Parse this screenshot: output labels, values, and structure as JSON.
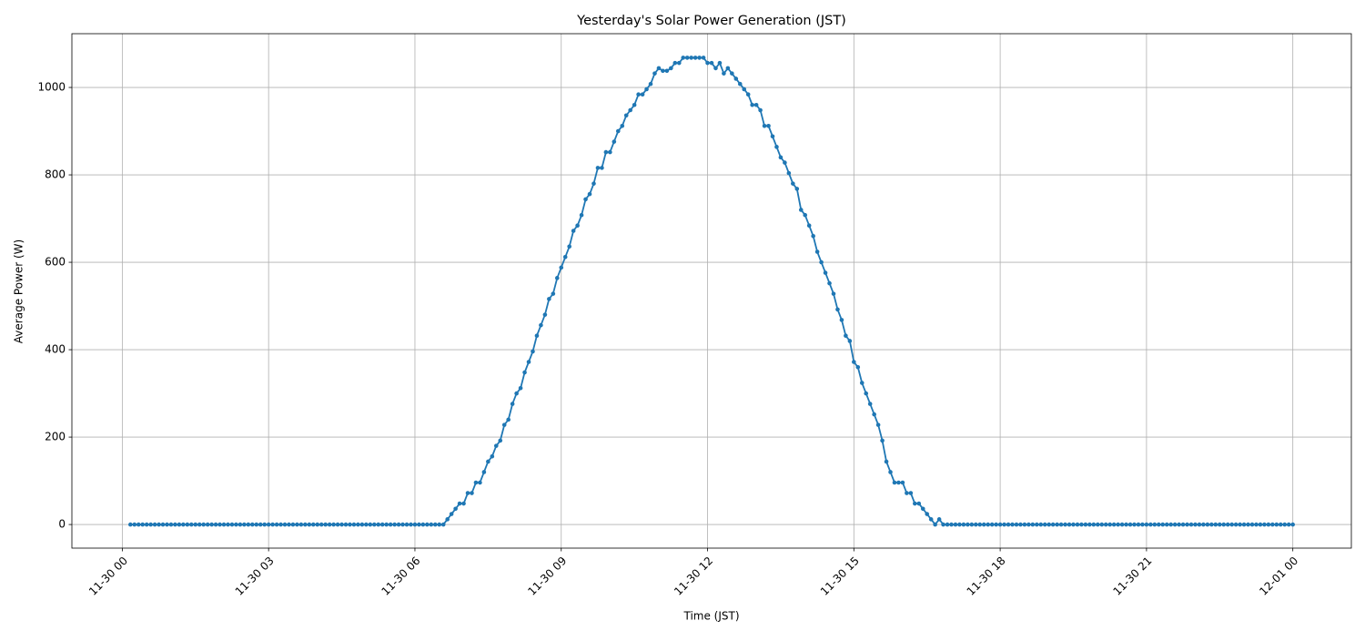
{
  "chart_data": {
    "type": "line",
    "title": "Yesterday's Solar Power Generation (JST)",
    "xlabel": "Time (JST)",
    "ylabel": "Average Power (W)",
    "color": "#1f77b4",
    "grid": true,
    "xlim": [
      -62,
      1512
    ],
    "ylim": [
      -54,
      1123
    ],
    "xticks": [
      {
        "value": 0,
        "label": "11-30 00"
      },
      {
        "value": 180,
        "label": "11-30 03"
      },
      {
        "value": 360,
        "label": "11-30 06"
      },
      {
        "value": 540,
        "label": "11-30 09"
      },
      {
        "value": 720,
        "label": "11-30 12"
      },
      {
        "value": 900,
        "label": "11-30 15"
      },
      {
        "value": 1080,
        "label": "11-30 18"
      },
      {
        "value": 1260,
        "label": "11-30 21"
      },
      {
        "value": 1440,
        "label": "12-01 00"
      }
    ],
    "yticks": [
      0,
      200,
      400,
      600,
      800,
      1000
    ],
    "x": [
      10,
      15,
      20,
      25,
      30,
      35,
      40,
      45,
      50,
      55,
      60,
      65,
      70,
      75,
      80,
      85,
      90,
      95,
      100,
      105,
      110,
      115,
      120,
      125,
      130,
      135,
      140,
      145,
      150,
      155,
      160,
      165,
      170,
      175,
      180,
      185,
      190,
      195,
      200,
      205,
      210,
      215,
      220,
      225,
      230,
      235,
      240,
      245,
      250,
      255,
      260,
      265,
      270,
      275,
      280,
      285,
      290,
      295,
      300,
      305,
      310,
      315,
      320,
      325,
      330,
      335,
      340,
      345,
      350,
      355,
      360,
      365,
      370,
      375,
      380,
      385,
      390,
      395,
      400,
      405,
      410,
      415,
      420,
      425,
      430,
      435,
      440,
      445,
      450,
      455,
      460,
      465,
      470,
      475,
      480,
      485,
      490,
      495,
      500,
      505,
      510,
      515,
      520,
      525,
      530,
      535,
      540,
      545,
      550,
      555,
      560,
      565,
      570,
      575,
      580,
      585,
      590,
      595,
      600,
      605,
      610,
      615,
      620,
      625,
      630,
      635,
      640,
      645,
      650,
      655,
      660,
      665,
      670,
      675,
      680,
      685,
      690,
      695,
      700,
      705,
      710,
      715,
      720,
      725,
      730,
      735,
      740,
      745,
      750,
      755,
      760,
      765,
      770,
      775,
      780,
      785,
      790,
      795,
      800,
      805,
      810,
      815,
      820,
      825,
      830,
      835,
      840,
      845,
      850,
      855,
      860,
      865,
      870,
      875,
      880,
      885,
      890,
      895,
      900,
      905,
      910,
      915,
      920,
      925,
      930,
      935,
      940,
      945,
      950,
      955,
      960,
      965,
      970,
      975,
      980,
      985,
      990,
      995,
      1000,
      1005,
      1010,
      1015,
      1020,
      1025,
      1030,
      1035,
      1040,
      1045,
      1050,
      1055,
      1060,
      1065,
      1070,
      1075,
      1080,
      1085,
      1090,
      1095,
      1100,
      1105,
      1110,
      1115,
      1120,
      1125,
      1130,
      1135,
      1140,
      1145,
      1150,
      1155,
      1160,
      1165,
      1170,
      1175,
      1180,
      1185,
      1190,
      1195,
      1200,
      1205,
      1210,
      1215,
      1220,
      1225,
      1230,
      1235,
      1240,
      1245,
      1250,
      1255,
      1260,
      1265,
      1270,
      1275,
      1280,
      1285,
      1290,
      1295,
      1300,
      1305,
      1310,
      1315,
      1320,
      1325,
      1330,
      1335,
      1340,
      1345,
      1350,
      1355,
      1360,
      1365,
      1370,
      1375,
      1380,
      1385,
      1390,
      1395,
      1400,
      1405,
      1410,
      1415,
      1420,
      1425,
      1430,
      1435,
      1440
    ],
    "values": [
      0,
      0,
      0,
      0,
      0,
      0,
      0,
      0,
      0,
      0,
      0,
      0,
      0,
      0,
      0,
      0,
      0,
      0,
      0,
      0,
      0,
      0,
      0,
      0,
      0,
      0,
      0,
      0,
      0,
      0,
      0,
      0,
      0,
      0,
      0,
      0,
      0,
      0,
      0,
      0,
      0,
      0,
      0,
      0,
      0,
      0,
      0,
      0,
      0,
      0,
      0,
      0,
      0,
      0,
      0,
      0,
      0,
      0,
      0,
      0,
      0,
      0,
      0,
      0,
      0,
      0,
      0,
      0,
      0,
      0,
      0,
      0,
      0,
      0,
      0,
      0,
      0,
      0,
      12,
      24,
      36,
      48,
      48,
      72,
      72,
      96,
      96,
      120,
      144,
      156,
      180,
      192,
      228,
      240,
      276,
      300,
      312,
      348,
      372,
      396,
      432,
      456,
      480,
      516,
      528,
      564,
      588,
      612,
      636,
      672,
      684,
      708,
      744,
      756,
      780,
      816,
      816,
      852,
      852,
      876,
      900,
      912,
      936,
      948,
      960,
      984,
      984,
      996,
      1008,
      1032,
      1044,
      1038,
      1038,
      1044,
      1056,
      1056,
      1068,
      1068,
      1068,
      1068,
      1068,
      1068,
      1056,
      1056,
      1044,
      1056,
      1032,
      1044,
      1032,
      1020,
      1008,
      996,
      984,
      960,
      960,
      948,
      912,
      912,
      888,
      864,
      840,
      828,
      804,
      780,
      768,
      720,
      708,
      684,
      660,
      624,
      600,
      576,
      552,
      528,
      492,
      468,
      432,
      420,
      372,
      360,
      324,
      300,
      276,
      252,
      228,
      192,
      144,
      120,
      96,
      96,
      96,
      72,
      72,
      48,
      48,
      36,
      24,
      12,
      0,
      12,
      0,
      0,
      0,
      0,
      0,
      0,
      0,
      0,
      0,
      0,
      0,
      0,
      0,
      0,
      0,
      0,
      0,
      0,
      0,
      0,
      0,
      0,
      0,
      0,
      0,
      0,
      0,
      0,
      0,
      0,
      0,
      0,
      0,
      0,
      0,
      0,
      0,
      0,
      0,
      0,
      0,
      0,
      0,
      0,
      0,
      0,
      0,
      0,
      0,
      0,
      0,
      0,
      0,
      0,
      0,
      0,
      0,
      0,
      0,
      0,
      0,
      0,
      0,
      0,
      0,
      0,
      0,
      0,
      0,
      0,
      0,
      0,
      0,
      0,
      0,
      0,
      0,
      0,
      0,
      0,
      0,
      0,
      0,
      0,
      0,
      0,
      0
    ]
  }
}
